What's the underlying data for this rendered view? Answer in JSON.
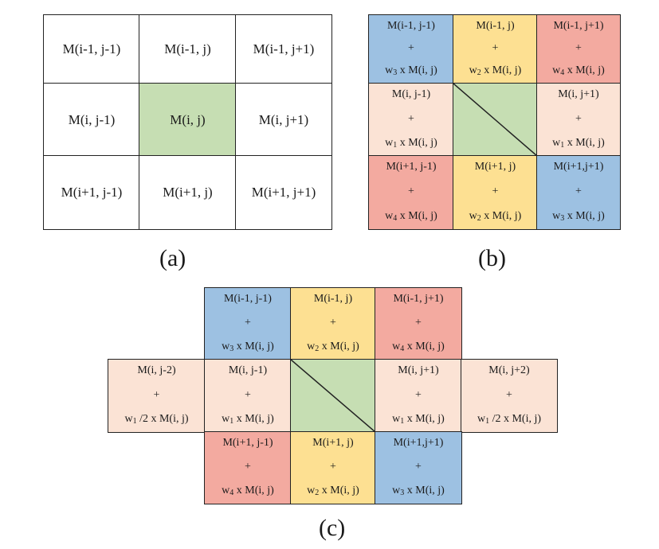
{
  "panel_a": {
    "caption": "(a)",
    "cells": [
      {
        "text": "M(i-1, j-1)"
      },
      {
        "text": "M(i-1, j)"
      },
      {
        "text": "M(i-1, j+1)"
      },
      {
        "text": "M(i, j-1)"
      },
      {
        "text": "M(i, j)"
      },
      {
        "text": "M(i, j+1)"
      },
      {
        "text": "M(i+1, j-1)"
      },
      {
        "text": "M(i+1, j)"
      },
      {
        "text": "M(i+1, j+1)"
      }
    ]
  },
  "panel_b": {
    "caption": "(b)",
    "cells": [
      {
        "top": "M(i-1, j-1)",
        "mid": "+",
        "w": "w",
        "sub": "3",
        "rest": " x M(i, j)"
      },
      {
        "top": "M(i-1, j)",
        "mid": "+",
        "w": "w",
        "sub": "2",
        "rest": " x M(i, j)"
      },
      {
        "top": "M(i-1, j+1)",
        "mid": "+",
        "w": "w",
        "sub": "4",
        "rest": " x M(i, j)"
      },
      {
        "top": "M(i, j-1)",
        "mid": "+",
        "w": "w",
        "sub": "1",
        "rest": " x M(i, j)"
      },
      {
        "top": "M(i, j+1)",
        "mid": "+",
        "w": "w",
        "sub": "1",
        "rest": " x M(i, j)"
      },
      {
        "top": "M(i+1, j-1)",
        "mid": "+",
        "w": "w",
        "sub": "4",
        "rest": " x M(i, j)"
      },
      {
        "top": "M(i+1, j)",
        "mid": "+",
        "w": "w",
        "sub": "2",
        "rest": " x M(i, j)"
      },
      {
        "top": "M(i+1,j+1)",
        "mid": "+",
        "w": "w",
        "sub": "3",
        "rest": " x M(i, j)"
      }
    ]
  },
  "panel_c": {
    "caption": "(c)",
    "cells": [
      {
        "top": "M(i-1, j-1)",
        "mid": "+",
        "w": "w",
        "sub": "3",
        "rest": " x M(i, j)"
      },
      {
        "top": "M(i-1, j)",
        "mid": "+",
        "w": "w",
        "sub": "2",
        "rest": " x M(i, j)"
      },
      {
        "top": "M(i-1, j+1)",
        "mid": "+",
        "w": "w",
        "sub": "4",
        "rest": " x M(i, j)"
      },
      {
        "top": "M(i, j-2)",
        "mid": "+",
        "w": "w",
        "sub": "1",
        "rest": " /2 x M(i, j)"
      },
      {
        "top": "M(i, j-1)",
        "mid": "+",
        "w": "w",
        "sub": "1",
        "rest": " x M(i, j)"
      },
      {
        "top": "M(i, j+1)",
        "mid": "+",
        "w": "w",
        "sub": "1",
        "rest": " x M(i, j)"
      },
      {
        "top": "M(i, j+2)",
        "mid": "+",
        "w": "w",
        "sub": "1",
        "rest": " /2 x M(i, j)"
      },
      {
        "top": "M(i+1, j-1)",
        "mid": "+",
        "w": "w",
        "sub": "4",
        "rest": " x M(i, j)"
      },
      {
        "top": "M(i+1, j)",
        "mid": "+",
        "w": "w",
        "sub": "2",
        "rest": " x M(i, j)"
      },
      {
        "top": "M(i+1,j+1)",
        "mid": "+",
        "w": "w",
        "sub": "3",
        "rest": " x M(i, j)"
      }
    ]
  },
  "colors": {
    "center": "#c6deb3",
    "diagonal_neighbor_w3": "#9dc1e2",
    "vertical_neighbor_w2": "#fde092",
    "antidiagonal_neighbor_w4": "#f3aaa0",
    "horizontal_neighbor_w1": "#fbe3d5"
  }
}
